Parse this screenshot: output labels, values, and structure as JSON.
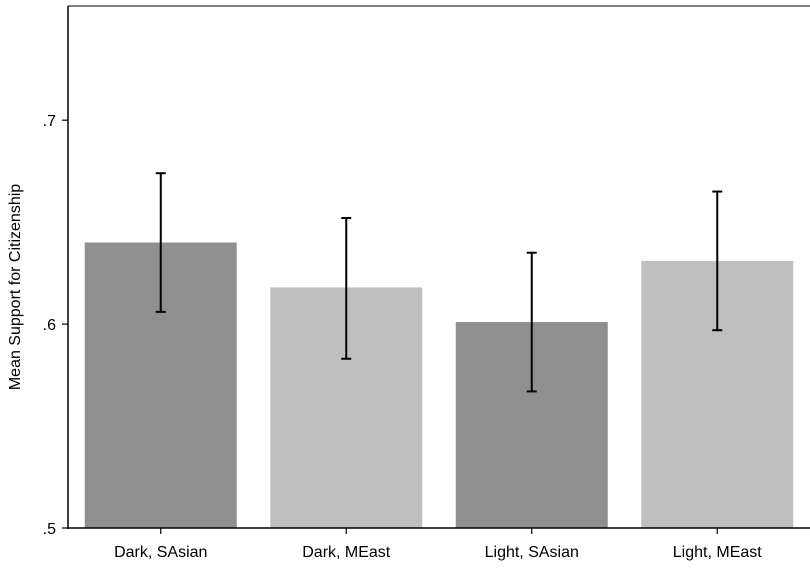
{
  "chart_data": {
    "type": "bar",
    "categories": [
      "Dark, SAsian",
      "Dark, MEast",
      "Light, SAsian",
      "Light, MEast"
    ],
    "values": [
      0.64,
      0.618,
      0.601,
      0.631
    ],
    "error_low": [
      0.606,
      0.583,
      0.567,
      0.597
    ],
    "error_high": [
      0.674,
      0.652,
      0.635,
      0.665
    ],
    "bar_colors": [
      "#8f8f8f",
      "#bfbfbf",
      "#8f8f8f",
      "#bfbfbf"
    ],
    "ylabel": "Mean Support for Citizenship",
    "xlabel": "",
    "ylim": [
      0.5,
      0.756
    ],
    "yticks": [
      0.5,
      0.6,
      0.7
    ],
    "ytick_labels": [
      ".5",
      ".6",
      ".7"
    ],
    "grid": false,
    "legend": "none"
  }
}
